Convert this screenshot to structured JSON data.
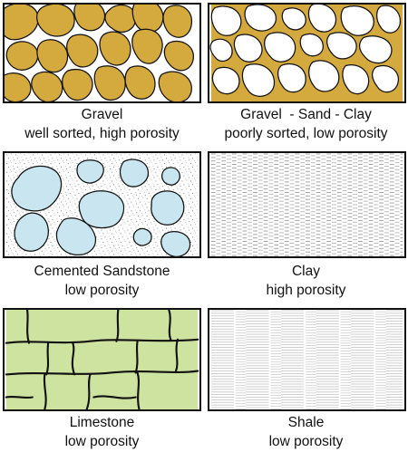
{
  "colors": {
    "gravel_fill": "#d4a93d",
    "sand_grain_fill": "#c9e6f0",
    "limestone_fill": "#cfe3a1",
    "outline": "#111111"
  },
  "panels": [
    {
      "title": "Gravel",
      "subtitle": "well sorted, high porosity"
    },
    {
      "title": "Gravel  - Sand - Clay",
      "subtitle": "poorly sorted, low porosity"
    },
    {
      "title": "Cemented Sandstone",
      "subtitle": "low porosity"
    },
    {
      "title": "Clay",
      "subtitle": "high porosity"
    },
    {
      "title": "Limestone",
      "subtitle": "low porosity"
    },
    {
      "title": "Shale",
      "subtitle": "low porosity"
    }
  ]
}
